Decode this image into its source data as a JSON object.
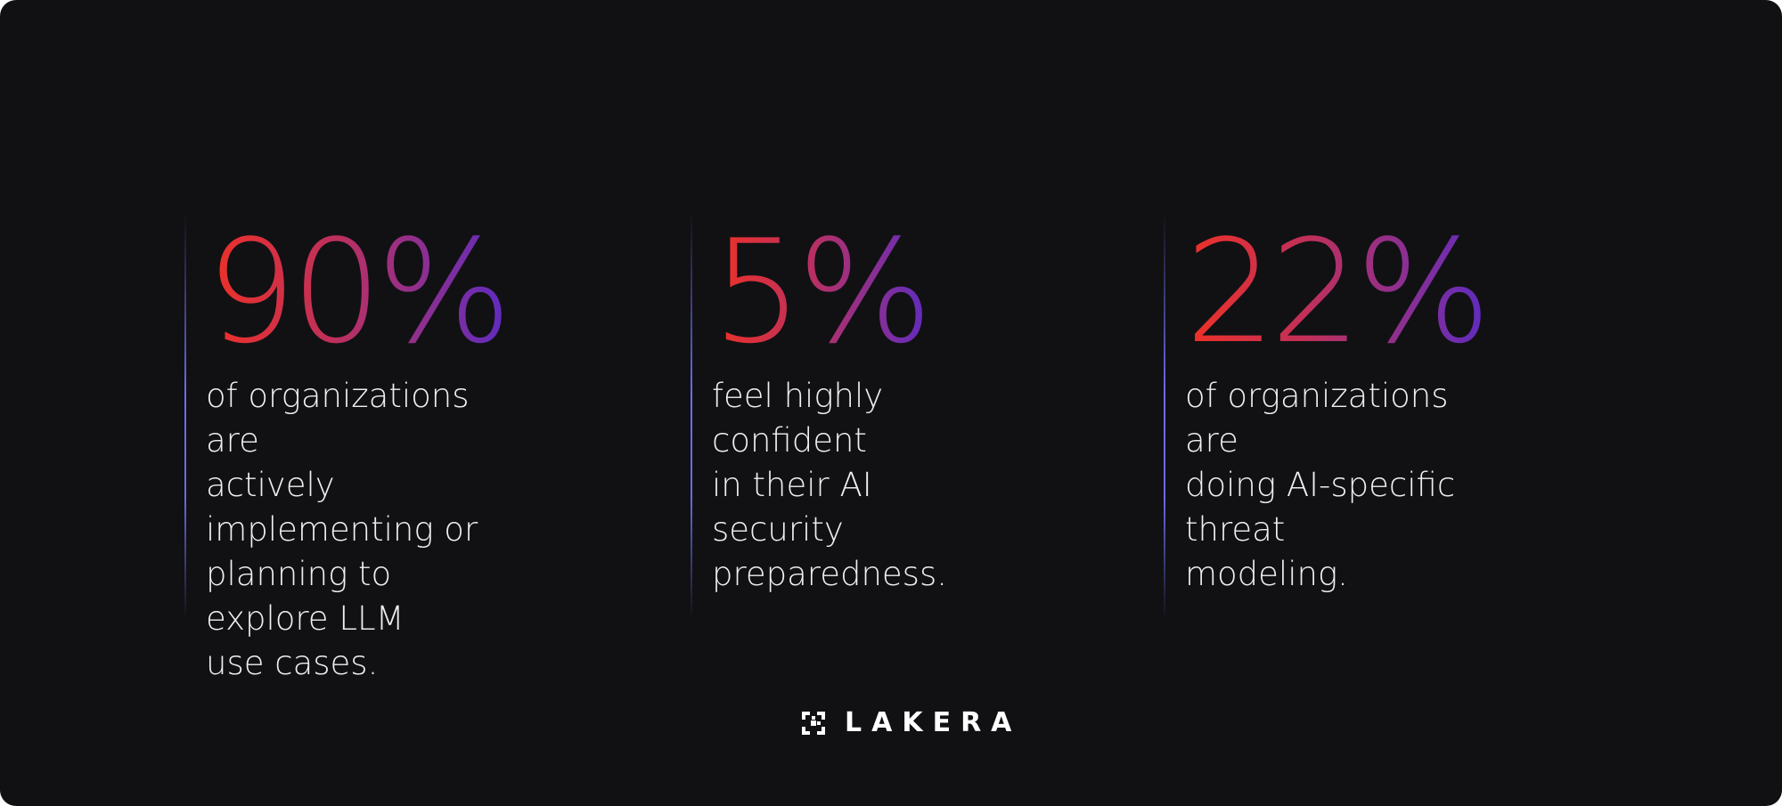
{
  "stats": [
    {
      "value": "90%",
      "description": "of organizations are\nactively implementing or\nplanning to explore LLM\nuse cases."
    },
    {
      "value": "5%",
      "description": "feel highly confident\nin their AI security\npreparedness."
    },
    {
      "value": "22%",
      "description": "of organizations are\ndoing AI-specific threat\nmodeling."
    }
  ],
  "brand": {
    "name": "LAKERA",
    "icon": "lakera-logo-icon"
  },
  "colors": {
    "background": "#111114",
    "gradient_start": "#ef3126",
    "gradient_end": "#5b2bc4",
    "divider": "#6f6cf0",
    "text": "#efeff2"
  }
}
